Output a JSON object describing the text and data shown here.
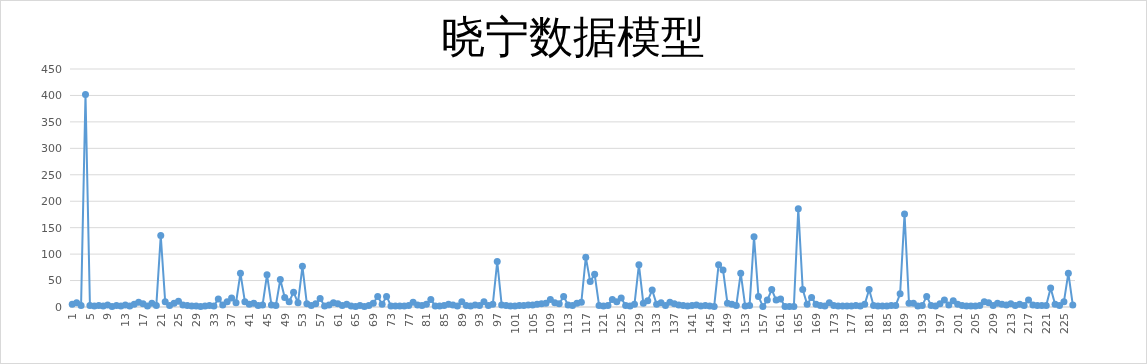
{
  "chart_data": {
    "type": "line",
    "title": "晓宁数据模型",
    "categories": [
      "1",
      null,
      null,
      null,
      "5",
      null,
      null,
      null,
      "9",
      null,
      null,
      null,
      "13",
      null,
      null,
      null,
      "17",
      null,
      null,
      null,
      "21",
      null,
      null,
      null,
      "25",
      null,
      null,
      null,
      "29",
      null,
      null,
      null,
      "33",
      null,
      null,
      null,
      "37",
      null,
      null,
      null,
      "41",
      null,
      null,
      null,
      "45",
      null,
      null,
      null,
      "49",
      null,
      null,
      null,
      "53",
      null,
      null,
      null,
      "57",
      null,
      null,
      null,
      "61",
      null,
      null,
      null,
      "65",
      null,
      null,
      null,
      "69",
      null,
      null,
      null,
      "73",
      null,
      null,
      null,
      "77",
      null,
      null,
      null,
      "81",
      null,
      null,
      null,
      "85",
      null,
      null,
      null,
      "89",
      null,
      null,
      null,
      "93",
      null,
      null,
      null,
      "97",
      null,
      null,
      null,
      "101",
      null,
      null,
      null,
      "105",
      null,
      null,
      null,
      "109",
      null,
      null,
      null,
      "113",
      null,
      null,
      null,
      "117",
      null,
      null,
      null,
      "121",
      null,
      null,
      null,
      "125",
      null,
      null,
      null,
      "129",
      null,
      null,
      null,
      "133",
      null,
      null,
      null,
      "137",
      null,
      null,
      null,
      "141",
      null,
      null,
      null,
      "145",
      null,
      null,
      null,
      "149",
      null,
      null,
      null,
      "153",
      null,
      null,
      null,
      "157",
      null,
      null,
      null,
      "161",
      null,
      null,
      null,
      "165",
      null,
      null,
      null,
      "169",
      null,
      null,
      null,
      "173",
      null,
      null,
      null,
      "177",
      null,
      null,
      null,
      "181",
      null,
      null,
      null,
      "185",
      null,
      null,
      null,
      "189",
      null,
      null,
      null,
      "193",
      null,
      null,
      null,
      "197",
      null,
      null,
      null,
      "201",
      null,
      null,
      null,
      "205",
      null,
      null,
      null,
      "209",
      null,
      null,
      null,
      "213",
      null,
      null,
      null,
      "217",
      null,
      null,
      null,
      "221",
      null,
      null,
      null,
      "225",
      null,
      null
    ],
    "series": [
      {
        "color": "#5b9bd5",
        "values": [
          5,
          8,
          3,
          402,
          3,
          2,
          3,
          2,
          4,
          1,
          3,
          2,
          4,
          2,
          5,
          9,
          6,
          2,
          7,
          3,
          135,
          10,
          3,
          7,
          11,
          4,
          3,
          2,
          2,
          1,
          2,
          3,
          2,
          15,
          4,
          10,
          17,
          8,
          64,
          10,
          5,
          7,
          3,
          4,
          61,
          4,
          3,
          52,
          18,
          10,
          28,
          8,
          77,
          6,
          3,
          6,
          16,
          2,
          4,
          8,
          6,
          3,
          5,
          2,
          1,
          3,
          1,
          3,
          7,
          20,
          5,
          20,
          2,
          2,
          2,
          2,
          3,
          9,
          4,
          3,
          5,
          14,
          2,
          2,
          3,
          5,
          4,
          2,
          10,
          3,
          2,
          4,
          3,
          10,
          3,
          5,
          86,
          4,
          3,
          2,
          2,
          3,
          3,
          4,
          4,
          5,
          6,
          7,
          14,
          8,
          6,
          20,
          4,
          3,
          7,
          9,
          94,
          48,
          62,
          3,
          2,
          3,
          14,
          10,
          17,
          3,
          2,
          5,
          80,
          7,
          12,
          32,
          5,
          8,
          3,
          9,
          6,
          4,
          3,
          2,
          3,
          4,
          2,
          3,
          2,
          1,
          80,
          70,
          7,
          5,
          3,
          64,
          2,
          3,
          133,
          20,
          1,
          13,
          33,
          13,
          15,
          1,
          1,
          1,
          186,
          33,
          5,
          18,
          5,
          3,
          2,
          8,
          3,
          2,
          2,
          2,
          2,
          3,
          2,
          5,
          33,
          3,
          2,
          2,
          2,
          3,
          3,
          25,
          176,
          7,
          7,
          2,
          3,
          20,
          3,
          2,
          6,
          13,
          4,
          12,
          5,
          3,
          2,
          2,
          2,
          3,
          10,
          8,
          3,
          7,
          5,
          4,
          6,
          3,
          5,
          3,
          13,
          4,
          3,
          3,
          3,
          36,
          5,
          3,
          10,
          64,
          4
        ]
      }
    ],
    "ylim": [
      0,
      450
    ],
    "yticks": [
      0,
      50,
      100,
      150,
      200,
      250,
      300,
      350,
      400,
      450
    ],
    "grid": "y",
    "marker": "circle",
    "line_style": "solid"
  }
}
